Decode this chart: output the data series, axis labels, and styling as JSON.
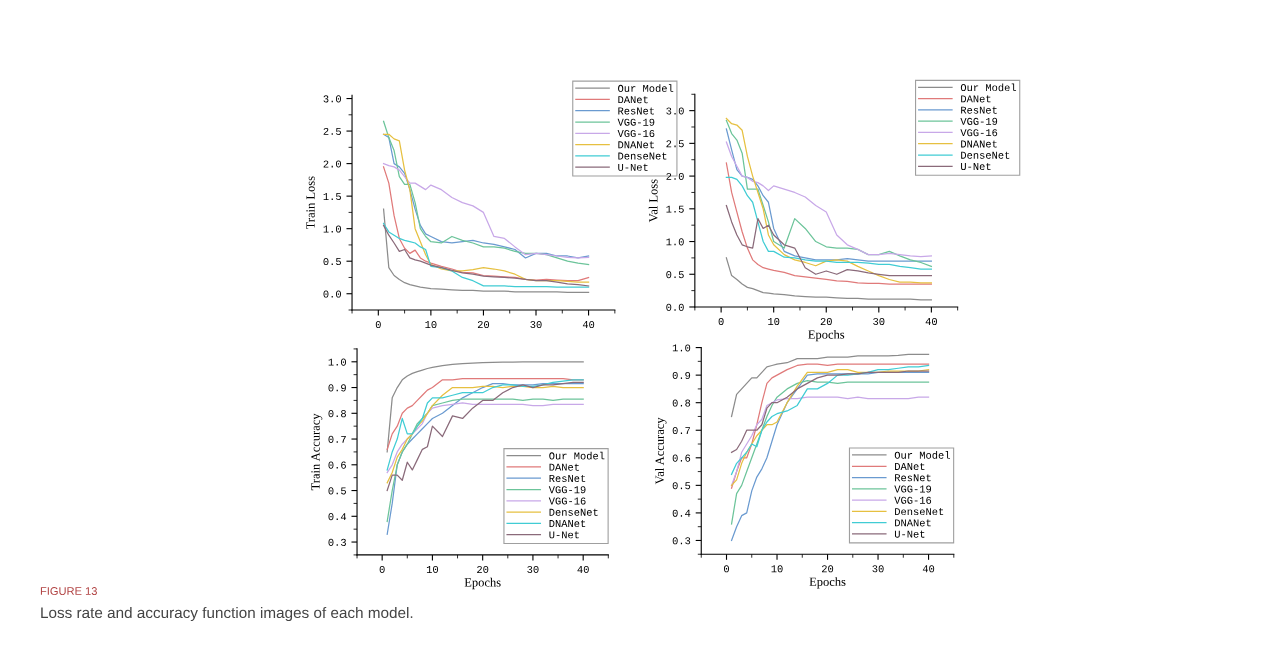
{
  "chart_data": [
    {
      "type": "line",
      "ylabel": "Train Loss",
      "x": [
        1,
        2,
        3,
        4,
        5,
        6,
        7,
        8,
        9,
        10,
        12,
        14,
        16,
        18,
        20,
        22,
        24,
        26,
        28,
        30,
        32,
        34,
        36,
        38,
        40
      ],
      "xlim": [
        -5,
        45
      ],
      "xticks": [
        0,
        10,
        20,
        30,
        40
      ],
      "ylim": [
        -0.25,
        3.05
      ],
      "yticks": [
        {
          "value": 0,
          "label": "0.0"
        },
        {
          "value": 0.5,
          "label": "0.5"
        },
        {
          "value": 1,
          "label": "1.0"
        },
        {
          "value": 1.5,
          "label": "1.5"
        },
        {
          "value": 2,
          "label": "2.0"
        },
        {
          "value": 2.5,
          "label": "2.5"
        },
        {
          "value": 3,
          "label": "3.0"
        }
      ],
      "legend": "top right",
      "grid": false,
      "annotations": [
        "FIGURE 13",
        "Loss rate and accuracy function images of each model."
      ],
      "series": [
        {
          "name": "Our Model",
          "color": "#8c8c8c",
          "values": [
            1.3,
            0.4,
            0.28,
            0.22,
            0.17,
            0.14,
            0.12,
            0.1,
            0.09,
            0.08,
            0.07,
            0.06,
            0.05,
            0.05,
            0.04,
            0.04,
            0.04,
            0.03,
            0.03,
            0.03,
            0.03,
            0.03,
            0.02,
            0.02,
            0.02
          ]
        },
        {
          "name": "DANet",
          "color": "#e07a7a",
          "values": [
            1.95,
            1.7,
            1.2,
            0.85,
            0.7,
            0.62,
            0.67,
            0.55,
            0.5,
            0.47,
            0.42,
            0.38,
            0.33,
            0.32,
            0.28,
            0.27,
            0.26,
            0.25,
            0.22,
            0.21,
            0.22,
            0.21,
            0.2,
            0.2,
            0.25
          ]
        },
        {
          "name": "ResNet",
          "color": "#6a9ad0",
          "values": [
            2.45,
            2.4,
            2.0,
            1.95,
            1.85,
            1.6,
            1.3,
            1.05,
            0.92,
            0.88,
            0.8,
            0.78,
            0.8,
            0.82,
            0.78,
            0.76,
            0.72,
            0.68,
            0.55,
            0.62,
            0.62,
            0.58,
            0.58,
            0.55,
            0.58
          ]
        },
        {
          "name": "VGG-19",
          "color": "#6cc49a",
          "values": [
            2.65,
            2.4,
            2.2,
            1.8,
            1.68,
            1.68,
            1.4,
            1.0,
            0.88,
            0.8,
            0.78,
            0.88,
            0.82,
            0.78,
            0.72,
            0.72,
            0.7,
            0.65,
            0.62,
            0.62,
            0.6,
            0.55,
            0.5,
            0.47,
            0.45
          ]
        },
        {
          "name": "VGG-16",
          "color": "#c8a8e8",
          "values": [
            2.0,
            1.97,
            1.95,
            1.9,
            1.8,
            1.7,
            1.7,
            1.65,
            1.6,
            1.67,
            1.6,
            1.48,
            1.4,
            1.35,
            1.25,
            0.88,
            0.85,
            0.72,
            0.6,
            0.62,
            0.6,
            0.58,
            0.56,
            0.55,
            0.56
          ]
        },
        {
          "name": "DNANet",
          "color": "#e6c040",
          "values": [
            2.45,
            2.45,
            2.38,
            2.35,
            1.9,
            1.6,
            1.0,
            0.8,
            0.6,
            0.45,
            0.38,
            0.35,
            0.35,
            0.37,
            0.4,
            0.38,
            0.35,
            0.3,
            0.22,
            0.2,
            0.2,
            0.2,
            0.19,
            0.18,
            0.18
          ]
        },
        {
          "name": "DenseNet",
          "color": "#40ccd4",
          "values": [
            1.08,
            0.95,
            0.9,
            0.85,
            0.82,
            0.8,
            0.78,
            0.72,
            0.68,
            0.42,
            0.4,
            0.35,
            0.25,
            0.2,
            0.12,
            0.12,
            0.12,
            0.11,
            0.11,
            0.11,
            0.11,
            0.1,
            0.1,
            0.1,
            0.1
          ]
        },
        {
          "name": "U-Net",
          "color": "#8a6a7a",
          "values": [
            1.05,
            0.9,
            0.78,
            0.65,
            0.68,
            0.55,
            0.52,
            0.5,
            0.47,
            0.44,
            0.4,
            0.36,
            0.32,
            0.3,
            0.27,
            0.26,
            0.25,
            0.24,
            0.22,
            0.2,
            0.2,
            0.18,
            0.15,
            0.14,
            0.12
          ]
        }
      ]
    },
    {
      "type": "line",
      "ylabel": "Val Loss",
      "xlabel": "Epochs",
      "x": [
        1,
        2,
        3,
        4,
        5,
        6,
        7,
        8,
        9,
        10,
        12,
        14,
        16,
        18,
        20,
        22,
        24,
        26,
        28,
        30,
        32,
        34,
        36,
        38,
        40
      ],
      "xlim": [
        -5,
        45
      ],
      "xticks": [
        0,
        10,
        20,
        30,
        40
      ],
      "ylim": [
        0,
        3.25
      ],
      "yticks": [
        {
          "value": 0,
          "label": "0.0"
        },
        {
          "value": 0.5,
          "label": "0.5"
        },
        {
          "value": 1,
          "label": "1.0"
        },
        {
          "value": 1.5,
          "label": "1.5"
        },
        {
          "value": 2,
          "label": "2.0"
        },
        {
          "value": 2.5,
          "label": "2.5"
        },
        {
          "value": 3,
          "label": "3.0"
        }
      ],
      "legend": "top right",
      "grid": false,
      "series": [
        {
          "name": "Our Model",
          "color": "#8c8c8c",
          "values": [
            0.75,
            0.48,
            0.42,
            0.35,
            0.3,
            0.28,
            0.25,
            0.22,
            0.21,
            0.2,
            0.19,
            0.17,
            0.16,
            0.15,
            0.15,
            0.14,
            0.13,
            0.13,
            0.12,
            0.12,
            0.12,
            0.12,
            0.12,
            0.11,
            0.11
          ]
        },
        {
          "name": "DANet",
          "color": "#e07a7a",
          "values": [
            2.2,
            1.75,
            1.45,
            1.15,
            0.9,
            0.72,
            0.65,
            0.6,
            0.58,
            0.56,
            0.53,
            0.48,
            0.46,
            0.44,
            0.42,
            0.4,
            0.39,
            0.37,
            0.36,
            0.36,
            0.35,
            0.35,
            0.35,
            0.35,
            0.35
          ]
        },
        {
          "name": "ResNet",
          "color": "#6a9ad0",
          "values": [
            2.72,
            2.4,
            2.1,
            2.0,
            1.98,
            1.95,
            1.85,
            1.7,
            1.6,
            1.2,
            0.85,
            0.78,
            0.75,
            0.72,
            0.72,
            0.72,
            0.74,
            0.72,
            0.7,
            0.7,
            0.7,
            0.7,
            0.7,
            0.7,
            0.7
          ]
        },
        {
          "name": "VGG-19",
          "color": "#6cc49a",
          "values": [
            2.85,
            2.65,
            2.55,
            2.35,
            1.8,
            1.8,
            1.8,
            1.55,
            1.3,
            1.0,
            0.9,
            1.35,
            1.2,
            1.0,
            0.92,
            0.9,
            0.9,
            0.88,
            0.8,
            0.8,
            0.85,
            0.78,
            0.72,
            0.68,
            0.62
          ]
        },
        {
          "name": "VGG-16",
          "color": "#c8a8e8",
          "values": [
            2.52,
            2.3,
            2.15,
            2.0,
            1.98,
            1.92,
            1.9,
            1.85,
            1.78,
            1.85,
            1.8,
            1.75,
            1.68,
            1.55,
            1.45,
            1.1,
            0.95,
            0.88,
            0.8,
            0.8,
            0.82,
            0.8,
            0.78,
            0.77,
            0.78
          ]
        },
        {
          "name": "DNANet",
          "color": "#e6c040",
          "values": [
            2.88,
            2.8,
            2.78,
            2.7,
            2.3,
            2.0,
            1.75,
            1.5,
            1.1,
            0.95,
            0.8,
            0.72,
            0.68,
            0.63,
            0.7,
            0.72,
            0.7,
            0.62,
            0.55,
            0.48,
            0.42,
            0.38,
            0.38,
            0.37,
            0.37
          ]
        },
        {
          "name": "DenseNet",
          "color": "#40ccd4",
          "values": [
            1.98,
            1.98,
            1.95,
            1.85,
            1.7,
            1.6,
            1.3,
            1.0,
            0.85,
            0.85,
            0.76,
            0.75,
            0.72,
            0.7,
            0.7,
            0.68,
            0.68,
            0.68,
            0.67,
            0.65,
            0.65,
            0.62,
            0.6,
            0.58,
            0.58
          ]
        },
        {
          "name": "U-Net",
          "color": "#8a6a7a",
          "values": [
            1.55,
            1.3,
            1.1,
            0.95,
            0.92,
            0.9,
            1.35,
            1.2,
            1.25,
            1.1,
            0.95,
            0.9,
            0.6,
            0.5,
            0.55,
            0.5,
            0.57,
            0.55,
            0.52,
            0.5,
            0.48,
            0.48,
            0.48,
            0.48,
            0.48
          ]
        }
      ]
    },
    {
      "type": "line",
      "ylabel": "Train Accuracy",
      "xlabel": "Epochs",
      "x": [
        1,
        2,
        3,
        4,
        5,
        6,
        7,
        8,
        9,
        10,
        12,
        14,
        16,
        18,
        20,
        22,
        24,
        26,
        28,
        30,
        32,
        34,
        36,
        38,
        40
      ],
      "xlim": [
        -5,
        45
      ],
      "xticks": [
        0,
        10,
        20,
        30,
        40
      ],
      "ylim": [
        0.25,
        1.05
      ],
      "yticks": [
        0.3,
        0.4,
        0.5,
        0.6,
        0.7,
        0.8,
        0.9,
        {
          "value": 1,
          "label": "1.0"
        }
      ],
      "legend": "bottom right",
      "grid": false,
      "series": [
        {
          "name": "Our Model",
          "color": "#8c8c8c",
          "values": [
            0.65,
            0.86,
            0.9,
            0.93,
            0.945,
            0.955,
            0.962,
            0.968,
            0.974,
            0.978,
            0.985,
            0.99,
            0.993,
            0.995,
            0.997,
            0.998,
            0.999,
            0.999,
            1.0,
            1.0,
            1.0,
            1.0,
            1.0,
            1.0,
            1.0
          ]
        },
        {
          "name": "DANet",
          "color": "#e07a7a",
          "values": [
            0.66,
            0.72,
            0.75,
            0.8,
            0.82,
            0.83,
            0.85,
            0.87,
            0.89,
            0.9,
            0.93,
            0.93,
            0.935,
            0.935,
            0.935,
            0.935,
            0.935,
            0.935,
            0.935,
            0.935,
            0.935,
            0.935,
            0.935,
            0.93,
            0.93
          ]
        },
        {
          "name": "ResNet",
          "color": "#6a9ad0",
          "values": [
            0.33,
            0.45,
            0.6,
            0.65,
            0.68,
            0.7,
            0.72,
            0.74,
            0.76,
            0.78,
            0.8,
            0.83,
            0.86,
            0.88,
            0.9,
            0.915,
            0.915,
            0.91,
            0.91,
            0.91,
            0.915,
            0.915,
            0.915,
            0.915,
            0.915
          ]
        },
        {
          "name": "VGG-19",
          "color": "#6cc49a",
          "values": [
            0.38,
            0.5,
            0.6,
            0.65,
            0.68,
            0.72,
            0.76,
            0.78,
            0.8,
            0.83,
            0.84,
            0.85,
            0.855,
            0.855,
            0.855,
            0.855,
            0.855,
            0.855,
            0.85,
            0.855,
            0.855,
            0.85,
            0.855,
            0.855,
            0.855
          ]
        },
        {
          "name": "VGG-16",
          "color": "#c8a8e8",
          "values": [
            0.57,
            0.6,
            0.65,
            0.68,
            0.7,
            0.72,
            0.74,
            0.76,
            0.8,
            0.82,
            0.83,
            0.835,
            0.84,
            0.835,
            0.835,
            0.835,
            0.835,
            0.835,
            0.835,
            0.83,
            0.83,
            0.835,
            0.835,
            0.835,
            0.835
          ]
        },
        {
          "name": "DenseNet",
          "color": "#e6c040",
          "values": [
            0.53,
            0.57,
            0.63,
            0.66,
            0.7,
            0.72,
            0.75,
            0.77,
            0.8,
            0.83,
            0.87,
            0.9,
            0.9,
            0.9,
            0.905,
            0.905,
            0.9,
            0.905,
            0.905,
            0.9,
            0.9,
            0.905,
            0.9,
            0.9,
            0.9
          ]
        },
        {
          "name": "DNANet",
          "color": "#40ccd4",
          "values": [
            0.58,
            0.65,
            0.7,
            0.78,
            0.72,
            0.72,
            0.75,
            0.78,
            0.84,
            0.86,
            0.86,
            0.87,
            0.88,
            0.88,
            0.88,
            0.9,
            0.91,
            0.91,
            0.905,
            0.905,
            0.91,
            0.92,
            0.925,
            0.93,
            0.93
          ]
        },
        {
          "name": "U-Net",
          "color": "#8a6a7a",
          "values": [
            0.5,
            0.56,
            0.56,
            0.54,
            0.61,
            0.58,
            0.62,
            0.66,
            0.67,
            0.75,
            0.71,
            0.79,
            0.78,
            0.82,
            0.85,
            0.85,
            0.88,
            0.9,
            0.91,
            0.9,
            0.91,
            0.91,
            0.915,
            0.92,
            0.92
          ]
        }
      ]
    },
    {
      "type": "line",
      "ylabel": "Val Accuracy",
      "xlabel": "Epochs",
      "x": [
        1,
        2,
        3,
        4,
        5,
        6,
        7,
        8,
        9,
        10,
        12,
        14,
        16,
        18,
        20,
        22,
        24,
        26,
        28,
        30,
        32,
        34,
        36,
        38,
        40
      ],
      "xlim": [
        -5,
        45
      ],
      "xticks": [
        0,
        10,
        20,
        30,
        40
      ],
      "ylim": [
        0.25,
        1.0
      ],
      "yticks": [
        0.3,
        0.4,
        0.5,
        0.6,
        0.7,
        0.8,
        0.9,
        {
          "value": 1,
          "label": "1.0"
        }
      ],
      "legend": "bottom right",
      "grid": false,
      "series": [
        {
          "name": "Our Model",
          "color": "#8c8c8c",
          "values": [
            0.75,
            0.83,
            0.85,
            0.87,
            0.89,
            0.89,
            0.91,
            0.93,
            0.935,
            0.94,
            0.945,
            0.96,
            0.96,
            0.96,
            0.965,
            0.965,
            0.965,
            0.97,
            0.97,
            0.97,
            0.97,
            0.972,
            0.975,
            0.975,
            0.975
          ]
        },
        {
          "name": "DANet",
          "color": "#e07a7a",
          "values": [
            0.49,
            0.55,
            0.6,
            0.6,
            0.65,
            0.72,
            0.8,
            0.87,
            0.89,
            0.9,
            0.92,
            0.935,
            0.94,
            0.94,
            0.935,
            0.94,
            0.94,
            0.94,
            0.94,
            0.94,
            0.94,
            0.94,
            0.94,
            0.94,
            0.94
          ]
        },
        {
          "name": "ResNet",
          "color": "#6a9ad0",
          "values": [
            0.3,
            0.35,
            0.39,
            0.4,
            0.48,
            0.53,
            0.56,
            0.6,
            0.66,
            0.72,
            0.8,
            0.85,
            0.9,
            0.905,
            0.905,
            0.905,
            0.905,
            0.905,
            0.905,
            0.91,
            0.91,
            0.91,
            0.91,
            0.91,
            0.91
          ]
        },
        {
          "name": "VGG-19",
          "color": "#6cc49a",
          "values": [
            0.36,
            0.47,
            0.5,
            0.55,
            0.6,
            0.65,
            0.7,
            0.75,
            0.79,
            0.82,
            0.85,
            0.87,
            0.88,
            0.875,
            0.875,
            0.87,
            0.875,
            0.875,
            0.875,
            0.875,
            0.875,
            0.875,
            0.875,
            0.875,
            0.875
          ]
        },
        {
          "name": "VGG-16",
          "color": "#c8a8e8",
          "values": [
            0.5,
            0.55,
            0.62,
            0.65,
            0.68,
            0.72,
            0.74,
            0.79,
            0.8,
            0.81,
            0.815,
            0.815,
            0.82,
            0.82,
            0.82,
            0.82,
            0.815,
            0.82,
            0.815,
            0.815,
            0.815,
            0.815,
            0.815,
            0.82,
            0.82
          ]
        },
        {
          "name": "DenseNet",
          "color": "#e6c040",
          "values": [
            0.5,
            0.52,
            0.58,
            0.62,
            0.65,
            0.68,
            0.7,
            0.72,
            0.72,
            0.73,
            0.8,
            0.86,
            0.91,
            0.91,
            0.91,
            0.92,
            0.92,
            0.91,
            0.91,
            0.91,
            0.915,
            0.915,
            0.915,
            0.915,
            0.92
          ]
        },
        {
          "name": "DNANet",
          "color": "#40ccd4",
          "values": [
            0.54,
            0.58,
            0.6,
            0.62,
            0.65,
            0.64,
            0.7,
            0.73,
            0.75,
            0.76,
            0.77,
            0.79,
            0.85,
            0.85,
            0.87,
            0.9,
            0.9,
            0.905,
            0.91,
            0.92,
            0.92,
            0.925,
            0.93,
            0.93,
            0.935
          ]
        },
        {
          "name": "U-Net",
          "color": "#8a6a7a",
          "values": [
            0.62,
            0.63,
            0.66,
            0.7,
            0.7,
            0.7,
            0.72,
            0.78,
            0.8,
            0.8,
            0.82,
            0.85,
            0.87,
            0.89,
            0.9,
            0.9,
            0.905,
            0.905,
            0.91,
            0.91,
            0.91,
            0.91,
            0.915,
            0.915,
            0.915
          ]
        }
      ]
    }
  ]
}
